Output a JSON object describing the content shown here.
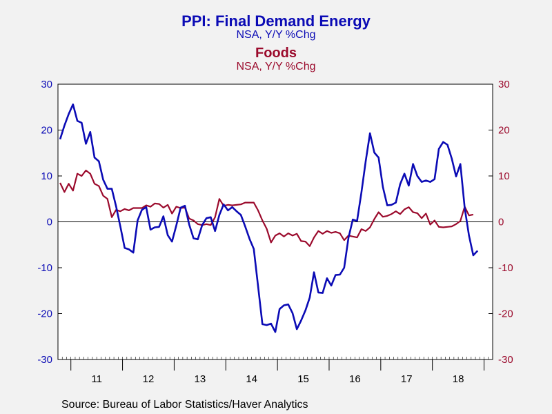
{
  "chart_data": {
    "type": "line",
    "title": "PPI: Final Demand Energy",
    "title_sub": "NSA, Y/Y %Chg",
    "title2": "Foods",
    "title2_sub": "NSA, Y/Y %Chg",
    "source": "Source:  Bureau of Labor Statistics/Haver Analytics",
    "ylim": [
      -30,
      30
    ],
    "yticks_left": [
      "30",
      "20",
      "10",
      "0",
      "-10",
      "-20",
      "-30"
    ],
    "yticks_right": [
      "30",
      "20",
      "10",
      "0",
      "-10",
      "-20",
      "-30"
    ],
    "year_labels": [
      "11",
      "12",
      "13",
      "14",
      "15",
      "16",
      "17",
      "18"
    ],
    "x_start": "2010-10",
    "x_end": "2019-02",
    "grid": false,
    "zero_line": true,
    "colors": {
      "energy": "#0b0bb5",
      "foods": "#9b0a2c",
      "axis_left": "#0b0bb5",
      "axis_right": "#9b0a2c"
    },
    "series": [
      {
        "name": "PPI: Final Demand Energy",
        "axis": "left",
        "start": "2010-10",
        "values": [
          18.0,
          21.0,
          23.5,
          25.6,
          22.0,
          21.6,
          17.0,
          19.6,
          14.0,
          13.2,
          9.2,
          7.2,
          7.2,
          3.4,
          -1.0,
          -5.7,
          -6.0,
          -6.7,
          0.3,
          2.6,
          3.2,
          -1.7,
          -1.2,
          -1.1,
          1.2,
          -2.9,
          -4.3,
          -0.8,
          3.1,
          3.5,
          -0.6,
          -3.6,
          -3.8,
          -0.7,
          0.8,
          1.0,
          -2.0,
          1.5,
          3.8,
          2.5,
          3.2,
          2.3,
          1.5,
          -1.0,
          -3.7,
          -5.9,
          -14.0,
          -22.3,
          -22.5,
          -22.2,
          -24.0,
          -19.0,
          -18.2,
          -18.0,
          -19.9,
          -23.4,
          -21.5,
          -19.3,
          -16.5,
          -11.0,
          -15.4,
          -15.5,
          -12.3,
          -13.9,
          -11.6,
          -11.5,
          -10.0,
          -3.5,
          0.5,
          0.2,
          6.4,
          13.2,
          19.3,
          15.1,
          14.0,
          7.6,
          3.6,
          3.7,
          4.2,
          8.2,
          10.5,
          7.9,
          12.6,
          10.0,
          8.7,
          9.0,
          8.7,
          9.3,
          15.9,
          17.4,
          16.8,
          13.8,
          9.9,
          12.6,
          3.0,
          -3.0,
          -7.3,
          -6.3
        ]
      },
      {
        "name": "Foods",
        "axis": "right",
        "start": "2010-10",
        "values": [
          8.5,
          6.5,
          8.3,
          6.8,
          10.5,
          10.0,
          11.2,
          10.5,
          8.3,
          7.8,
          5.7,
          5.0,
          1.0,
          2.6,
          2.3,
          2.8,
          2.5,
          3.0,
          3.0,
          3.0,
          3.6,
          3.3,
          4.0,
          3.9,
          3.1,
          3.7,
          1.8,
          3.3,
          3.0,
          3.1,
          0.7,
          0.3,
          -0.5,
          -0.7,
          -0.5,
          -0.7,
          1.0,
          5.0,
          3.5,
          3.7,
          3.6,
          3.7,
          3.8,
          4.2,
          4.2,
          4.2,
          2.5,
          0.3,
          -1.5,
          -4.5,
          -3.0,
          -2.5,
          -3.2,
          -2.5,
          -3.0,
          -2.6,
          -4.2,
          -4.3,
          -5.3,
          -3.4,
          -2.0,
          -2.6,
          -2.0,
          -2.4,
          -2.2,
          -2.5,
          -4.0,
          -3.0,
          -3.2,
          -3.4,
          -1.6,
          -2.0,
          -1.2,
          0.6,
          2.1,
          1.1,
          1.3,
          1.7,
          2.3,
          1.7,
          2.7,
          3.2,
          2.1,
          1.9,
          0.8,
          1.8,
          -0.6,
          0.3,
          -1.1,
          -1.2,
          -1.1,
          -1.0,
          -0.5,
          0.2,
          3.3,
          1.4,
          1.6
        ]
      }
    ]
  }
}
